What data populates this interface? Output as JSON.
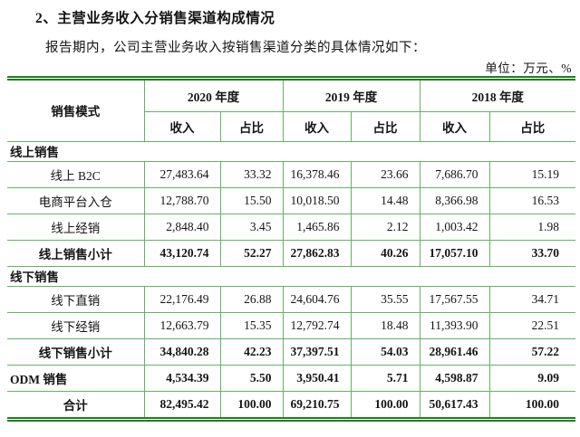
{
  "page": {
    "title": "2、主营业务收入分销售渠道构成情况",
    "intro": "报告期内，公司主营业务收入按销售渠道分类的具体情况如下：",
    "unit_note": "单位：万元、%"
  },
  "colors": {
    "rule_dark_green": "#1f7e1f",
    "grid_light_green": "#62b462"
  },
  "table": {
    "mode_header": "销售模式",
    "year_groups": [
      "2020 年度",
      "2019 年度",
      "2018 年度"
    ],
    "sub_headers": [
      "收入",
      "占比"
    ],
    "rows": [
      {
        "type": "section",
        "label": "线上销售"
      },
      {
        "type": "data",
        "label": "线上 B2C",
        "values": [
          "27,483.64",
          "33.32",
          "16,378.46",
          "23.66",
          "7,686.70",
          "15.19"
        ]
      },
      {
        "type": "data",
        "label": "电商平台入仓",
        "values": [
          "12,788.70",
          "15.50",
          "10,018.50",
          "14.48",
          "8,366.98",
          "16.53"
        ]
      },
      {
        "type": "data",
        "label": "线上经销",
        "values": [
          "2,848.40",
          "3.45",
          "1,465.86",
          "2.12",
          "1,003.42",
          "1.98"
        ]
      },
      {
        "type": "subtotal",
        "label": "线上销售小计",
        "values": [
          "43,120.74",
          "52.27",
          "27,862.83",
          "40.26",
          "17,057.10",
          "33.70"
        ]
      },
      {
        "type": "section",
        "label": "线下销售"
      },
      {
        "type": "data",
        "label": "线下直销",
        "values": [
          "22,176.49",
          "26.88",
          "24,604.76",
          "35.55",
          "17,567.55",
          "34.71"
        ]
      },
      {
        "type": "data",
        "label": "线下经销",
        "values": [
          "12,663.79",
          "15.35",
          "12,792.74",
          "18.48",
          "11,393.90",
          "22.51"
        ]
      },
      {
        "type": "subtotal",
        "label": "线下销售小计",
        "values": [
          "34,840.28",
          "42.23",
          "37,397.51",
          "54.03",
          "28,961.46",
          "57.22"
        ]
      },
      {
        "type": "odm",
        "label": "ODM 销售",
        "values": [
          "4,534.39",
          "5.50",
          "3,950.41",
          "5.71",
          "4,598.87",
          "9.09"
        ]
      },
      {
        "type": "total",
        "label": "合计",
        "values": [
          "82,495.42",
          "100.00",
          "69,210.75",
          "100.00",
          "50,617.43",
          "100.00"
        ]
      }
    ]
  }
}
